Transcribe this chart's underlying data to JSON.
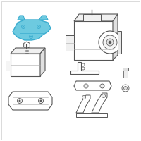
{
  "bg_color": "#ffffff",
  "border_color": "#cccccc",
  "highlight_color": "#3aaccf",
  "highlight_fill": "#6dcae0",
  "outline_dark": "#555555",
  "outline_light": "#aaaaaa",
  "fig_width": 2.0,
  "fig_height": 2.0,
  "dpi": 100
}
